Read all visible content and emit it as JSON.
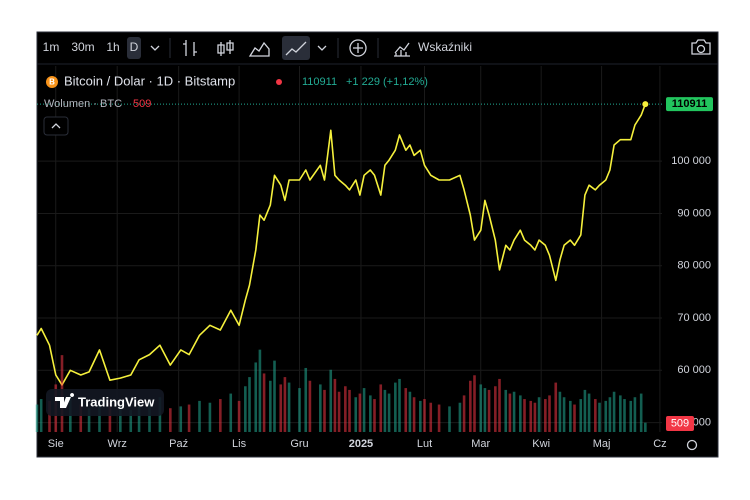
{
  "toolbar": {
    "intervals": [
      "1m",
      "30m",
      "1h",
      "D"
    ],
    "indicators": "Wskaźniki"
  },
  "legend": {
    "change": "+1 229 (+1,12%)"
  },
  "watermark": "TradingView",
  "chart_data": {
    "type": "line",
    "x": [
      0,
      2,
      6,
      9,
      12,
      16,
      21,
      25,
      30,
      35,
      40,
      45,
      49,
      54,
      59,
      64,
      69,
      73,
      78,
      83,
      88,
      93,
      97,
      100,
      102,
      105,
      107,
      109,
      112,
      114,
      117,
      119,
      121,
      126,
      129,
      131,
      136,
      138,
      141,
      143,
      145,
      148,
      150,
      153,
      155,
      157,
      160,
      162,
      165,
      167,
      169,
      172,
      174,
      177,
      179,
      181,
      184,
      186,
      189,
      193,
      198,
      203,
      205,
      208,
      210,
      213,
      215,
      217,
      220,
      222,
      225,
      227,
      229,
      232,
      234,
      237,
      239,
      241,
      244,
      246,
      249,
      251,
      253,
      256,
      258,
      261,
      263,
      265,
      268,
      270,
      273,
      275,
      277,
      280,
      282,
      285,
      287,
      290,
      292
    ],
    "xlim": [
      0,
      300
    ],
    "xticks": [
      {
        "value": 9,
        "label": "Sie"
      },
      {
        "value": 38.5,
        "label": "Wrz"
      },
      {
        "value": 68,
        "label": "Paź"
      },
      {
        "value": 97,
        "label": "Lis"
      },
      {
        "value": 126,
        "label": "Gru"
      },
      {
        "value": 155.5,
        "label": "2025"
      },
      {
        "value": 186,
        "label": "Lut"
      },
      {
        "value": 213,
        "label": "Mar"
      },
      {
        "value": 242,
        "label": "Kwi"
      },
      {
        "value": 271,
        "label": "Maj"
      },
      {
        "value": 299,
        "label": "Cz"
      }
    ],
    "ylim": [
      48200,
      118200
    ],
    "yticks": [
      {
        "value": 50000,
        "label": "50 000"
      },
      {
        "value": 60000,
        "label": "60 000"
      },
      {
        "value": 70000,
        "label": "70 000"
      },
      {
        "value": 80000,
        "label": "80 000"
      },
      {
        "value": 90000,
        "label": "90 000"
      },
      {
        "value": 100000,
        "label": "100 000"
      }
    ],
    "y2lim": [
      0,
      20000
    ],
    "grid": true,
    "last_value_line": true,
    "series": [
      {
        "name": "Bitcoin / Dolar · 1D · Bitstamp",
        "color": "#f5f03c",
        "values": [
          66700,
          68000,
          64800,
          59100,
          57200,
          60000,
          59100,
          59700,
          63900,
          58100,
          58500,
          59100,
          62000,
          63000,
          64800,
          61000,
          63900,
          63000,
          66700,
          68600,
          67700,
          71500,
          68600,
          73400,
          76300,
          83000,
          89700,
          88700,
          91600,
          97300,
          95400,
          92500,
          96400,
          96400,
          98300,
          96400,
          99200,
          96400,
          105900,
          97300,
          96400,
          95400,
          94500,
          96400,
          93500,
          97300,
          98300,
          97300,
          93500,
          99200,
          100200,
          102100,
          105000,
          102100,
          103100,
          101100,
          102100,
          99200,
          97300,
          96400,
          96400,
          97300,
          94500,
          89700,
          84900,
          86800,
          92500,
          89700,
          84900,
          79200,
          83900,
          83000,
          84900,
          86800,
          84900,
          83900,
          83000,
          84900,
          83900,
          82000,
          77200,
          81100,
          83900,
          84900,
          83900,
          85900,
          93500,
          95400,
          94500,
          95400,
          96400,
          98300,
          103100,
          104100,
          104100,
          104100,
          106900,
          108800,
          110911
        ]
      },
      {
        "name": "Wolumen · BTC",
        "axis": "y2",
        "type": "bar",
        "up_color": "#22ab94",
        "down_color": "#f23645",
        "values": [
          1500,
          1800,
          1700,
          2600,
          4200,
          2000,
          1500,
          1300,
          1800,
          1600,
          1400,
          1200,
          1500,
          1700,
          1900,
          1300,
          1400,
          1500,
          1700,
          1600,
          1800,
          2100,
          1700,
          2500,
          3000,
          3800,
          4500,
          3200,
          2800,
          3900,
          2600,
          3000,
          2700,
          2400,
          3500,
          2800,
          2600,
          2300,
          3400,
          2900,
          2200,
          2500,
          2300,
          1900,
          2100,
          2400,
          2000,
          1800,
          2600,
          2300,
          2100,
          2700,
          2900,
          2400,
          2200,
          1900,
          1700,
          1800,
          1600,
          1500,
          1400,
          1600,
          2000,
          2800,
          3100,
          2600,
          2400,
          2300,
          2500,
          2900,
          2300,
          2100,
          2200,
          2000,
          1800,
          1700,
          1600,
          1900,
          1800,
          2000,
          2700,
          2200,
          1900,
          1700,
          1500,
          1800,
          2300,
          2100,
          1800,
          1600,
          1700,
          1900,
          2200,
          2000,
          1800,
          1700,
          1900,
          2100,
          509
        ]
      }
    ]
  }
}
